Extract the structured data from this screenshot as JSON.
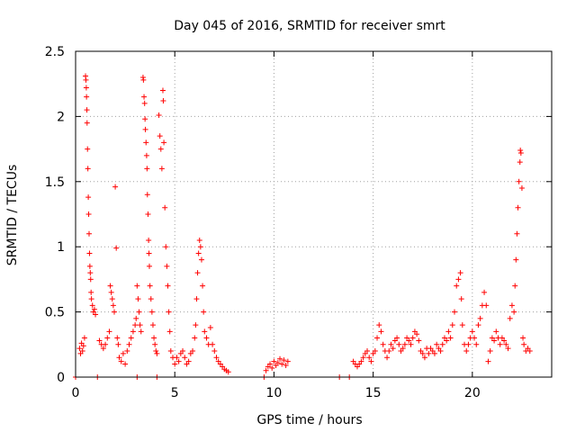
{
  "chart_data": {
    "type": "scatter",
    "title": "Day 045 of 2016, SRMTID for receiver smrt",
    "xlabel": "GPS time / hours",
    "ylabel": "SRMTID / TECUs",
    "xlim": [
      0,
      24
    ],
    "ylim": [
      0,
      2.5
    ],
    "xticks": [
      0,
      5,
      10,
      15,
      20
    ],
    "xtick_labels": [
      "0",
      "5",
      "10",
      "15",
      "20"
    ],
    "yticks": [
      0,
      0.5,
      1,
      1.5,
      2,
      2.5
    ],
    "ytick_labels": [
      "0",
      "0.5",
      "1",
      "1.5",
      "2",
      "2.5"
    ],
    "grid": true,
    "marker": "plus",
    "color": "#ff0000",
    "series": [
      {
        "name": "SRMTID",
        "points": [
          [
            0.0,
            0.0
          ],
          [
            1.1,
            0.0
          ],
          [
            3.1,
            0.0
          ],
          [
            4.1,
            0.0
          ],
          [
            9.5,
            0.0
          ],
          [
            13.3,
            0.0
          ],
          [
            13.8,
            0.0
          ],
          [
            0.2,
            0.22
          ],
          [
            0.25,
            0.18
          ],
          [
            0.3,
            0.26
          ],
          [
            0.35,
            0.2
          ],
          [
            0.4,
            0.24
          ],
          [
            0.45,
            0.3
          ],
          [
            0.5,
            2.31
          ],
          [
            0.52,
            2.28
          ],
          [
            0.54,
            2.22
          ],
          [
            0.55,
            2.15
          ],
          [
            0.57,
            2.05
          ],
          [
            0.58,
            1.95
          ],
          [
            0.6,
            1.75
          ],
          [
            0.62,
            1.6
          ],
          [
            0.64,
            1.38
          ],
          [
            0.66,
            1.25
          ],
          [
            0.68,
            1.1
          ],
          [
            0.7,
            0.95
          ],
          [
            0.72,
            0.85
          ],
          [
            0.74,
            0.8
          ],
          [
            0.76,
            0.75
          ],
          [
            0.78,
            0.65
          ],
          [
            0.8,
            0.6
          ],
          [
            0.85,
            0.55
          ],
          [
            0.9,
            0.5
          ],
          [
            0.95,
            0.52
          ],
          [
            1.0,
            0.48
          ],
          [
            1.2,
            0.28
          ],
          [
            1.3,
            0.25
          ],
          [
            1.4,
            0.22
          ],
          [
            1.5,
            0.25
          ],
          [
            1.6,
            0.3
          ],
          [
            1.7,
            0.35
          ],
          [
            1.75,
            0.7
          ],
          [
            1.8,
            0.65
          ],
          [
            1.85,
            0.6
          ],
          [
            1.9,
            0.55
          ],
          [
            1.95,
            0.5
          ],
          [
            2.0,
            1.46
          ],
          [
            2.05,
            0.99
          ],
          [
            2.1,
            0.3
          ],
          [
            2.15,
            0.25
          ],
          [
            2.2,
            0.15
          ],
          [
            2.3,
            0.12
          ],
          [
            2.4,
            0.18
          ],
          [
            2.5,
            0.1
          ],
          [
            2.6,
            0.2
          ],
          [
            2.7,
            0.25
          ],
          [
            2.8,
            0.3
          ],
          [
            2.9,
            0.35
          ],
          [
            3.0,
            0.4
          ],
          [
            3.05,
            0.45
          ],
          [
            3.1,
            0.7
          ],
          [
            3.15,
            0.6
          ],
          [
            3.2,
            0.5
          ],
          [
            3.25,
            0.4
          ],
          [
            3.3,
            0.35
          ],
          [
            3.4,
            2.3
          ],
          [
            3.42,
            2.28
          ],
          [
            3.45,
            2.15
          ],
          [
            3.48,
            2.1
          ],
          [
            3.5,
            1.98
          ],
          [
            3.52,
            1.9
          ],
          [
            3.55,
            1.8
          ],
          [
            3.58,
            1.7
          ],
          [
            3.6,
            1.6
          ],
          [
            3.62,
            1.4
          ],
          [
            3.65,
            1.25
          ],
          [
            3.68,
            1.05
          ],
          [
            3.7,
            0.95
          ],
          [
            3.72,
            0.85
          ],
          [
            3.75,
            0.7
          ],
          [
            3.8,
            0.6
          ],
          [
            3.85,
            0.5
          ],
          [
            3.9,
            0.4
          ],
          [
            3.95,
            0.3
          ],
          [
            4.0,
            0.25
          ],
          [
            4.05,
            0.2
          ],
          [
            4.1,
            0.18
          ],
          [
            4.2,
            2.01
          ],
          [
            4.25,
            1.85
          ],
          [
            4.3,
            1.75
          ],
          [
            4.35,
            1.6
          ],
          [
            4.4,
            2.2
          ],
          [
            4.42,
            2.12
          ],
          [
            4.45,
            1.8
          ],
          [
            4.5,
            1.3
          ],
          [
            4.55,
            1.0
          ],
          [
            4.6,
            0.85
          ],
          [
            4.65,
            0.7
          ],
          [
            4.7,
            0.5
          ],
          [
            4.75,
            0.35
          ],
          [
            4.8,
            0.2
          ],
          [
            4.9,
            0.15
          ],
          [
            5.0,
            0.1
          ],
          [
            5.1,
            0.15
          ],
          [
            5.2,
            0.12
          ],
          [
            5.3,
            0.18
          ],
          [
            5.4,
            0.2
          ],
          [
            5.5,
            0.15
          ],
          [
            5.6,
            0.1
          ],
          [
            5.7,
            0.12
          ],
          [
            5.8,
            0.18
          ],
          [
            5.9,
            0.2
          ],
          [
            6.0,
            0.3
          ],
          [
            6.05,
            0.4
          ],
          [
            6.1,
            0.6
          ],
          [
            6.15,
            0.8
          ],
          [
            6.2,
            0.95
          ],
          [
            6.25,
            1.05
          ],
          [
            6.3,
            1.0
          ],
          [
            6.35,
            0.9
          ],
          [
            6.4,
            0.7
          ],
          [
            6.45,
            0.5
          ],
          [
            6.5,
            0.35
          ],
          [
            6.6,
            0.3
          ],
          [
            6.7,
            0.25
          ],
          [
            6.8,
            0.38
          ],
          [
            6.9,
            0.25
          ],
          [
            7.0,
            0.2
          ],
          [
            7.1,
            0.15
          ],
          [
            7.2,
            0.12
          ],
          [
            7.3,
            0.1
          ],
          [
            7.4,
            0.08
          ],
          [
            7.5,
            0.06
          ],
          [
            7.6,
            0.05
          ],
          [
            7.7,
            0.04
          ],
          [
            9.6,
            0.05
          ],
          [
            9.7,
            0.08
          ],
          [
            9.8,
            0.1
          ],
          [
            9.9,
            0.07
          ],
          [
            10.0,
            0.12
          ],
          [
            10.1,
            0.09
          ],
          [
            10.2,
            0.11
          ],
          [
            10.3,
            0.14
          ],
          [
            10.4,
            0.1
          ],
          [
            10.5,
            0.13
          ],
          [
            10.6,
            0.09
          ],
          [
            10.7,
            0.12
          ],
          [
            14.0,
            0.12
          ],
          [
            14.1,
            0.1
          ],
          [
            14.2,
            0.08
          ],
          [
            14.3,
            0.1
          ],
          [
            14.4,
            0.12
          ],
          [
            14.5,
            0.15
          ],
          [
            14.6,
            0.18
          ],
          [
            14.7,
            0.2
          ],
          [
            14.8,
            0.15
          ],
          [
            14.9,
            0.12
          ],
          [
            15.0,
            0.18
          ],
          [
            15.1,
            0.2
          ],
          [
            15.2,
            0.3
          ],
          [
            15.3,
            0.4
          ],
          [
            15.4,
            0.35
          ],
          [
            15.5,
            0.25
          ],
          [
            15.6,
            0.2
          ],
          [
            15.7,
            0.15
          ],
          [
            15.8,
            0.2
          ],
          [
            15.9,
            0.25
          ],
          [
            16.0,
            0.22
          ],
          [
            16.1,
            0.28
          ],
          [
            16.2,
            0.3
          ],
          [
            16.3,
            0.25
          ],
          [
            16.4,
            0.2
          ],
          [
            16.5,
            0.22
          ],
          [
            16.6,
            0.25
          ],
          [
            16.7,
            0.3
          ],
          [
            16.8,
            0.28
          ],
          [
            16.9,
            0.25
          ],
          [
            17.0,
            0.3
          ],
          [
            17.1,
            0.35
          ],
          [
            17.2,
            0.33
          ],
          [
            17.3,
            0.28
          ],
          [
            17.4,
            0.2
          ],
          [
            17.5,
            0.18
          ],
          [
            17.6,
            0.15
          ],
          [
            17.7,
            0.22
          ],
          [
            17.8,
            0.18
          ],
          [
            17.9,
            0.22
          ],
          [
            18.0,
            0.2
          ],
          [
            18.1,
            0.18
          ],
          [
            18.2,
            0.25
          ],
          [
            18.3,
            0.22
          ],
          [
            18.4,
            0.2
          ],
          [
            18.5,
            0.25
          ],
          [
            18.6,
            0.3
          ],
          [
            18.7,
            0.28
          ],
          [
            18.8,
            0.35
          ],
          [
            18.9,
            0.3
          ],
          [
            19.0,
            0.4
          ],
          [
            19.1,
            0.5
          ],
          [
            19.2,
            0.7
          ],
          [
            19.3,
            0.75
          ],
          [
            19.4,
            0.8
          ],
          [
            19.45,
            0.6
          ],
          [
            19.5,
            0.4
          ],
          [
            19.6,
            0.25
          ],
          [
            19.7,
            0.2
          ],
          [
            19.8,
            0.25
          ],
          [
            19.9,
            0.3
          ],
          [
            20.0,
            0.35
          ],
          [
            20.1,
            0.3
          ],
          [
            20.2,
            0.25
          ],
          [
            20.3,
            0.4
          ],
          [
            20.4,
            0.45
          ],
          [
            20.5,
            0.55
          ],
          [
            20.6,
            0.65
          ],
          [
            20.7,
            0.55
          ],
          [
            20.8,
            0.12
          ],
          [
            20.9,
            0.2
          ],
          [
            21.0,
            0.3
          ],
          [
            21.1,
            0.28
          ],
          [
            21.2,
            0.35
          ],
          [
            21.3,
            0.3
          ],
          [
            21.4,
            0.25
          ],
          [
            21.5,
            0.3
          ],
          [
            21.6,
            0.28
          ],
          [
            21.7,
            0.25
          ],
          [
            21.8,
            0.22
          ],
          [
            21.9,
            0.45
          ],
          [
            22.0,
            0.55
          ],
          [
            22.1,
            0.5
          ],
          [
            22.15,
            0.7
          ],
          [
            22.2,
            0.9
          ],
          [
            22.25,
            1.1
          ],
          [
            22.3,
            1.3
          ],
          [
            22.35,
            1.5
          ],
          [
            22.4,
            1.65
          ],
          [
            22.42,
            1.74
          ],
          [
            22.45,
            1.72
          ],
          [
            22.5,
            1.45
          ],
          [
            22.55,
            0.3
          ],
          [
            22.6,
            0.25
          ],
          [
            22.7,
            0.2
          ],
          [
            22.8,
            0.22
          ],
          [
            22.9,
            0.2
          ]
        ]
      }
    ]
  }
}
